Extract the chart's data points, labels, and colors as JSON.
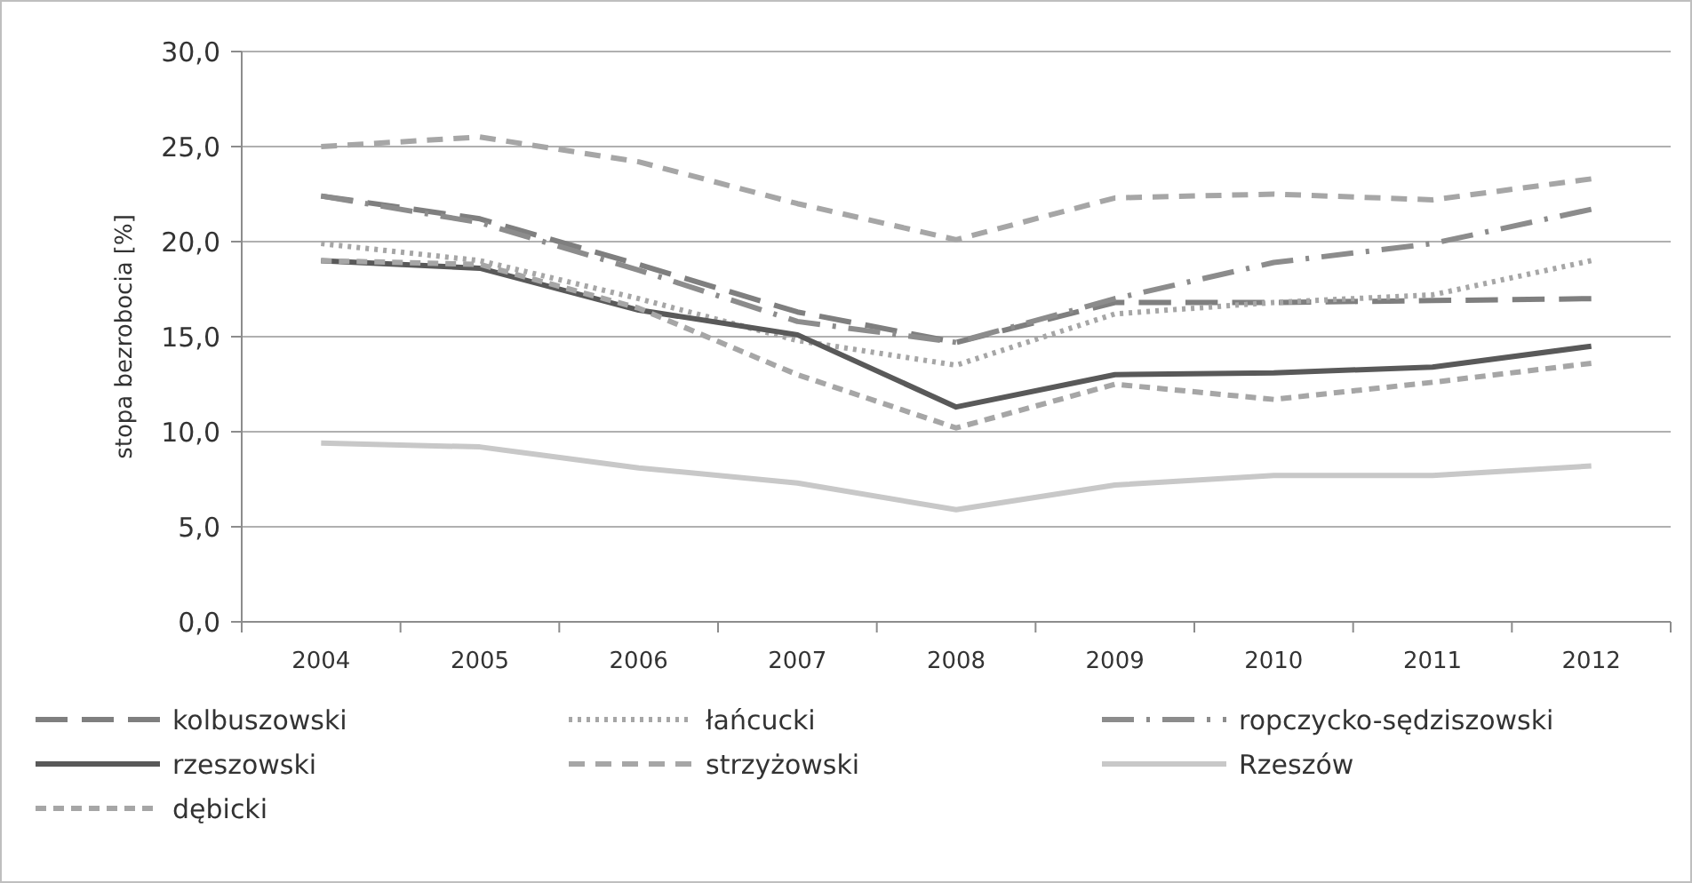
{
  "chart_data": {
    "type": "line",
    "ylabel": "stopa bezrobocia [%]",
    "categories": [
      "2004",
      "2005",
      "2006",
      "2007",
      "2008",
      "2009",
      "2010",
      "2011",
      "2012"
    ],
    "ylim": [
      0,
      30
    ],
    "yticks": [
      {
        "value": 0,
        "label": "0,0"
      },
      {
        "value": 5,
        "label": "5,0"
      },
      {
        "value": 10,
        "label": "10,0"
      },
      {
        "value": 15,
        "label": "15,0"
      },
      {
        "value": 20,
        "label": "20,0"
      },
      {
        "value": 25,
        "label": "25,0"
      },
      {
        "value": 30,
        "label": "30,0"
      }
    ],
    "grid": "y",
    "legend": "bottom",
    "marker": "none",
    "series": [
      {
        "name": "kolbuszowski",
        "color": "#7f7f7f",
        "line_style": "dashed",
        "values": [
          22.4,
          21.2,
          18.8,
          16.3,
          14.7,
          16.8,
          16.8,
          16.9,
          17.0
        ]
      },
      {
        "name": "łańcucki",
        "color": "#a6a6a6",
        "line_style": "dotted",
        "values": [
          19.9,
          19.0,
          17.0,
          14.8,
          13.5,
          16.2,
          16.8,
          17.2,
          19.0
        ]
      },
      {
        "name": "ropczycko-sędziszowski",
        "color": "#8c8c8c",
        "line_style": "dashed",
        "values": [
          22.4,
          21.0,
          18.5,
          15.8,
          14.7,
          17.0,
          18.9,
          19.9,
          21.7
        ]
      },
      {
        "name": "rzeszowski",
        "color": "#595959",
        "line_style": "solid",
        "values": [
          19.0,
          18.6,
          16.4,
          15.1,
          11.3,
          13.0,
          13.1,
          13.4,
          14.5
        ]
      },
      {
        "name": "strzyżowski",
        "color": "#a6a6a6",
        "line_style": "dashed",
        "values": [
          25.0,
          25.5,
          24.2,
          22.0,
          20.1,
          22.3,
          22.5,
          22.2,
          23.3
        ]
      },
      {
        "name": "Rzeszów",
        "color": "#c8c8c8",
        "line_style": "solid",
        "values": [
          9.4,
          9.2,
          8.1,
          7.3,
          5.9,
          7.2,
          7.7,
          7.7,
          8.2
        ]
      },
      {
        "name": "dębicki",
        "color": "#a6a6a6",
        "line_style": "dashed",
        "values": [
          19.0,
          18.8,
          16.5,
          13.0,
          10.2,
          12.5,
          11.7,
          12.6,
          13.6
        ]
      }
    ]
  }
}
